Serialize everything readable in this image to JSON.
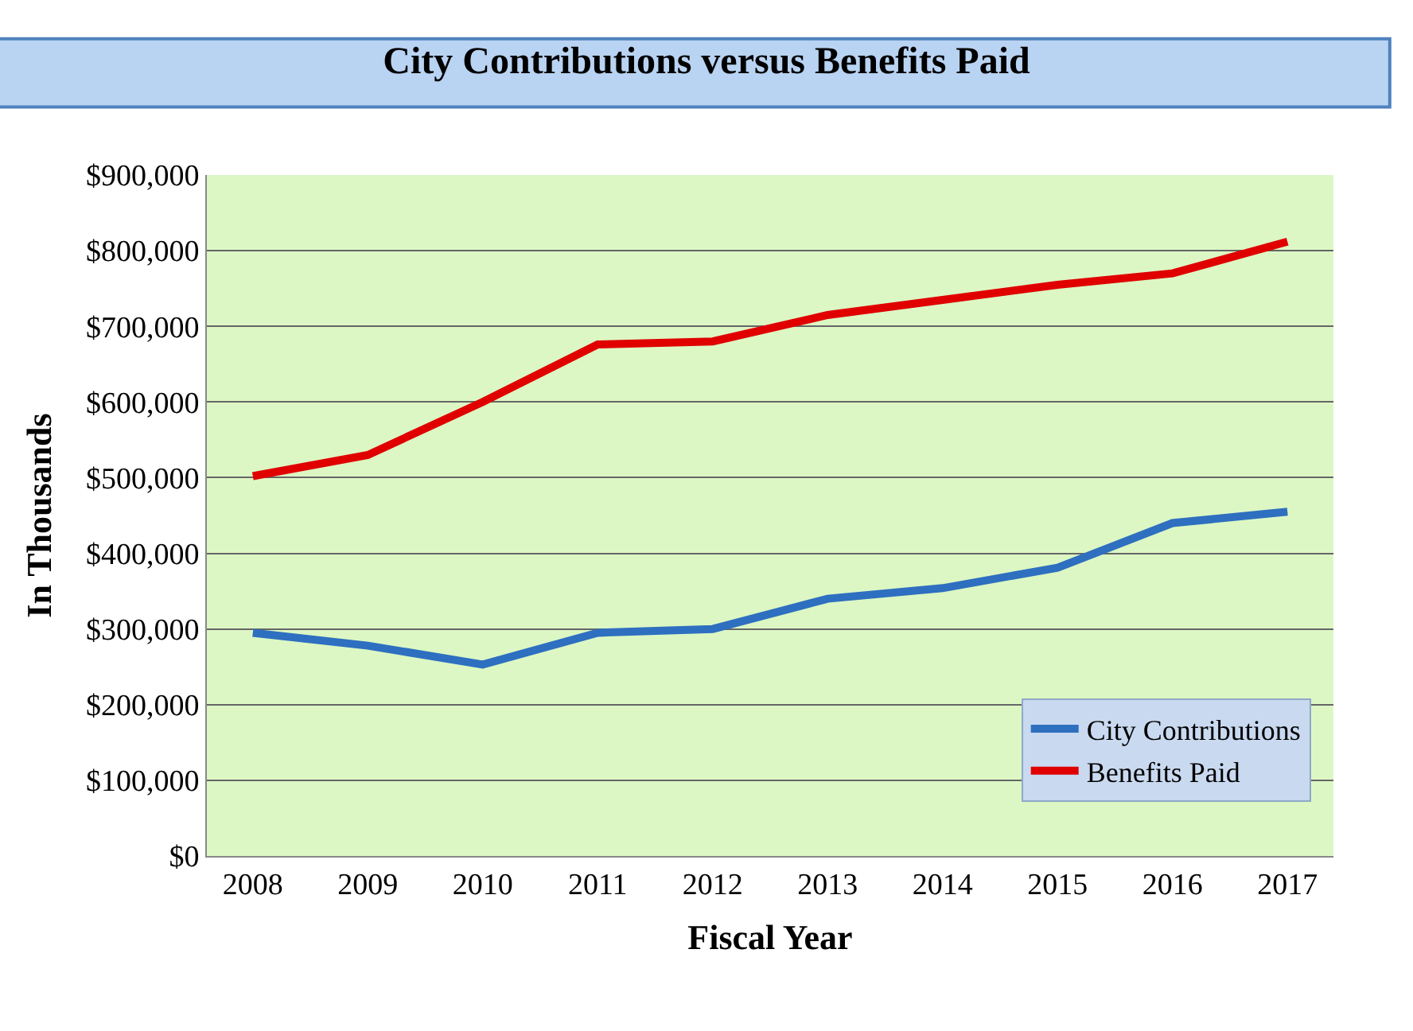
{
  "chart_data": {
    "type": "line",
    "title": "City Contributions versus Benefits Paid",
    "xlabel": "Fiscal Year",
    "ylabel": "In Thousands",
    "categories": [
      "2008",
      "2009",
      "2010",
      "2011",
      "2012",
      "2013",
      "2014",
      "2015",
      "2016",
      "2017"
    ],
    "series": [
      {
        "name": "City Contributions",
        "color": "#2e6fc0",
        "values": [
          295000,
          278000,
          253000,
          295000,
          300000,
          340000,
          354000,
          381000,
          440000,
          455000
        ]
      },
      {
        "name": "Benefits Paid",
        "color": "#e00000",
        "values": [
          502000,
          530000,
          600000,
          676000,
          680000,
          715000,
          735000,
          755000,
          770000,
          812000
        ]
      }
    ],
    "ylim": [
      0,
      900000
    ],
    "yticks": [
      {
        "value": 0,
        "label": "$0"
      },
      {
        "value": 100000,
        "label": "$100,000"
      },
      {
        "value": 200000,
        "label": "$200,000"
      },
      {
        "value": 300000,
        "label": "$300,000"
      },
      {
        "value": 400000,
        "label": "$400,000"
      },
      {
        "value": 500000,
        "label": "$500,000"
      },
      {
        "value": 600000,
        "label": "$600,000"
      },
      {
        "value": 700000,
        "label": "$700,000"
      },
      {
        "value": 800000,
        "label": "$800,000"
      },
      {
        "value": 900000,
        "label": "$900,000"
      }
    ],
    "grid": "y",
    "legend": "bottom right",
    "marker": "none",
    "line_style": "solid"
  }
}
